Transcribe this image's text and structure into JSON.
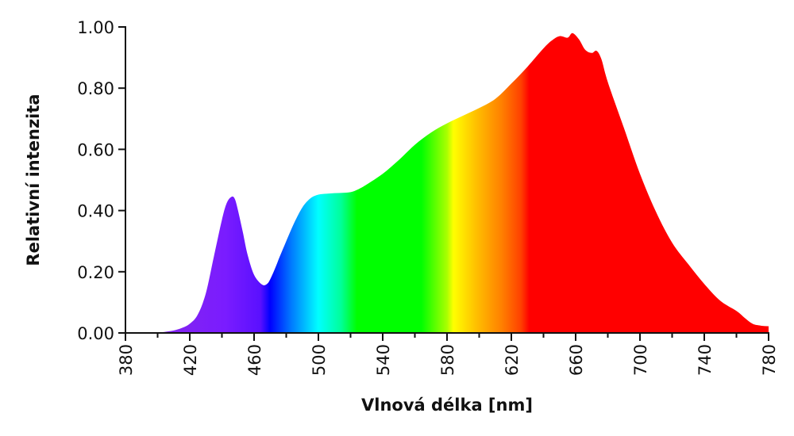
{
  "chart_data": {
    "type": "area",
    "xlabel": "Vlnová délka [nm]",
    "ylabel": "Relativní intenzita",
    "xlim": [
      380,
      780
    ],
    "ylim": [
      0,
      1
    ],
    "x_ticks": [
      "380",
      "420",
      "460",
      "500",
      "540",
      "580",
      "620",
      "660",
      "700",
      "740",
      "780"
    ],
    "y_ticks": [
      "0.00",
      "0.20",
      "0.40",
      "0.60",
      "0.80",
      "1.00"
    ],
    "grid": false,
    "legend": "none",
    "fill": "visible-spectrum gradient",
    "colors": {
      "violet": "#7b1fff",
      "blue": "#0000ff",
      "cyan": "#00ffff",
      "green": "#00ff00",
      "yellow": "#ffff00",
      "orange": "#ff8000",
      "red": "#ff0000"
    },
    "x": [
      400,
      405,
      410,
      415,
      420,
      425,
      430,
      435,
      440,
      443,
      446,
      448,
      450,
      453,
      456,
      460,
      465,
      468,
      470,
      473,
      476,
      480,
      485,
      490,
      495,
      500,
      505,
      510,
      515,
      520,
      525,
      530,
      540,
      550,
      560,
      570,
      580,
      590,
      600,
      610,
      620,
      630,
      640,
      645,
      650,
      655,
      658,
      662,
      666,
      670,
      673,
      676,
      680,
      690,
      700,
      710,
      720,
      730,
      740,
      750,
      760,
      765,
      770,
      775,
      780
    ],
    "values": [
      0.0,
      0.004,
      0.008,
      0.016,
      0.03,
      0.06,
      0.13,
      0.25,
      0.37,
      0.425,
      0.445,
      0.438,
      0.4,
      0.33,
      0.255,
      0.19,
      0.158,
      0.16,
      0.175,
      0.21,
      0.25,
      0.3,
      0.36,
      0.41,
      0.44,
      0.452,
      0.455,
      0.457,
      0.458,
      0.46,
      0.47,
      0.485,
      0.52,
      0.565,
      0.615,
      0.655,
      0.685,
      0.71,
      0.735,
      0.765,
      0.815,
      0.87,
      0.93,
      0.955,
      0.97,
      0.965,
      0.98,
      0.96,
      0.925,
      0.915,
      0.922,
      0.895,
      0.82,
      0.67,
      0.52,
      0.395,
      0.295,
      0.225,
      0.16,
      0.105,
      0.072,
      0.05,
      0.03,
      0.024,
      0.022
    ]
  }
}
